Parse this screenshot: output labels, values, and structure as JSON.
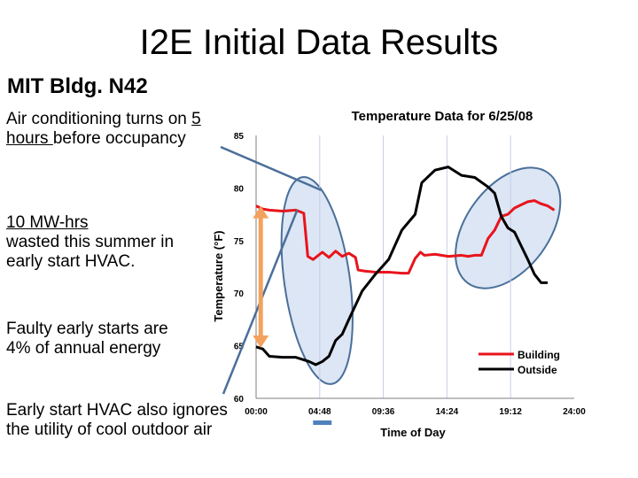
{
  "slide": {
    "title": "I2E Initial Data Results",
    "subtitle": "MIT Bldg. N42",
    "notes": {
      "n1_a": "Air conditioning turns on ",
      "n1_b": "5 hours ",
      "n1_c": "before occupancy",
      "n2_a": "10 MW-hrs",
      "n2_b": "wasted this summer in early start HVAC.",
      "n3": "Faulty early starts are 4% of annual energy",
      "n4": "Early start HVAC also ignores the utility of cool outdoor air"
    }
  },
  "colors": {
    "building": "#e8141c",
    "outside": "#000000",
    "ellipse_fill": "#dce6f4",
    "ellipse_stroke": "#4a6f9a",
    "arrow": "#f3a25e",
    "bar": "#4f81bd"
  },
  "chart_data": {
    "type": "line",
    "title": "Temperature Data for 6/25/08",
    "xlabel": "Time of Day",
    "ylabel": "Temperature (°F)",
    "xlim": [
      0,
      24
    ],
    "ylim": [
      60,
      85
    ],
    "xticks": [
      "00:00",
      "04:48",
      "09:36",
      "14:24",
      "19:12",
      "24:00"
    ],
    "yticks": [
      "60",
      "65",
      "70",
      "75",
      "80",
      "85"
    ],
    "grid": "vertical",
    "legend_position": "bottom-right",
    "series": [
      {
        "name": "Building",
        "color": "#e8141c",
        "x": [
          0,
          0.5,
          1,
          2,
          3,
          3.6,
          3.9,
          4.3,
          5.0,
          5.5,
          6.0,
          6.5,
          7.0,
          7.5,
          7.7,
          8.2,
          9.0,
          10.0,
          11.0,
          11.5,
          12.0,
          12.4,
          12.7,
          13.5,
          14.5,
          15.5,
          16.0,
          16.5,
          17.0,
          17.5,
          18.0,
          18.5,
          19.0,
          19.5,
          20.0,
          20.5,
          21.0,
          21.5,
          22.0,
          22.5
        ],
        "y": [
          78.3,
          78.0,
          77.9,
          77.8,
          77.9,
          77.6,
          73.5,
          73.2,
          73.9,
          73.4,
          74.0,
          73.5,
          73.8,
          73.4,
          72.2,
          72.1,
          72.0,
          72.0,
          71.9,
          71.9,
          73.3,
          73.9,
          73.6,
          73.7,
          73.5,
          73.6,
          73.5,
          73.6,
          73.6,
          75.2,
          76.0,
          77.3,
          77.5,
          78.1,
          78.4,
          78.7,
          78.8,
          78.5,
          78.3,
          77.9
        ]
      },
      {
        "name": "Outside",
        "color": "#000000",
        "x": [
          0,
          0.5,
          1,
          2,
          3,
          4,
          4.5,
          5,
          5.5,
          6,
          6.5,
          7,
          8,
          9,
          10,
          11,
          12,
          12.5,
          13.5,
          14.5,
          15.5,
          16.5,
          17.5,
          18.0,
          18.5,
          19,
          19.5,
          20,
          20.5,
          21,
          21.5,
          22
        ],
        "y": [
          64.9,
          64.7,
          64.0,
          63.9,
          63.9,
          63.5,
          63.2,
          63.5,
          64.0,
          65.5,
          66.1,
          67.5,
          70.2,
          71.8,
          73.2,
          76.0,
          77.5,
          80.5,
          81.7,
          82.0,
          81.2,
          81.0,
          80.1,
          79.5,
          77.3,
          76.2,
          75.8,
          74.5,
          73.2,
          71.8,
          71.0,
          71.0
        ]
      }
    ],
    "annotations": {
      "ellipse_morning": {
        "x": 4.6,
        "y": 71.2
      },
      "ellipse_evening": {
        "x": 19.0,
        "y": 76.2
      },
      "arrow_x": 0.35,
      "arrow_y": [
        78.3,
        64.8
      ],
      "bar_x": [
        4.3,
        5.7
      ],
      "note1_ptr": {
        "x": 4.9,
        "y": 79.8
      },
      "note4_ptr": {
        "x": 3.1,
        "y": 77.9
      }
    }
  }
}
